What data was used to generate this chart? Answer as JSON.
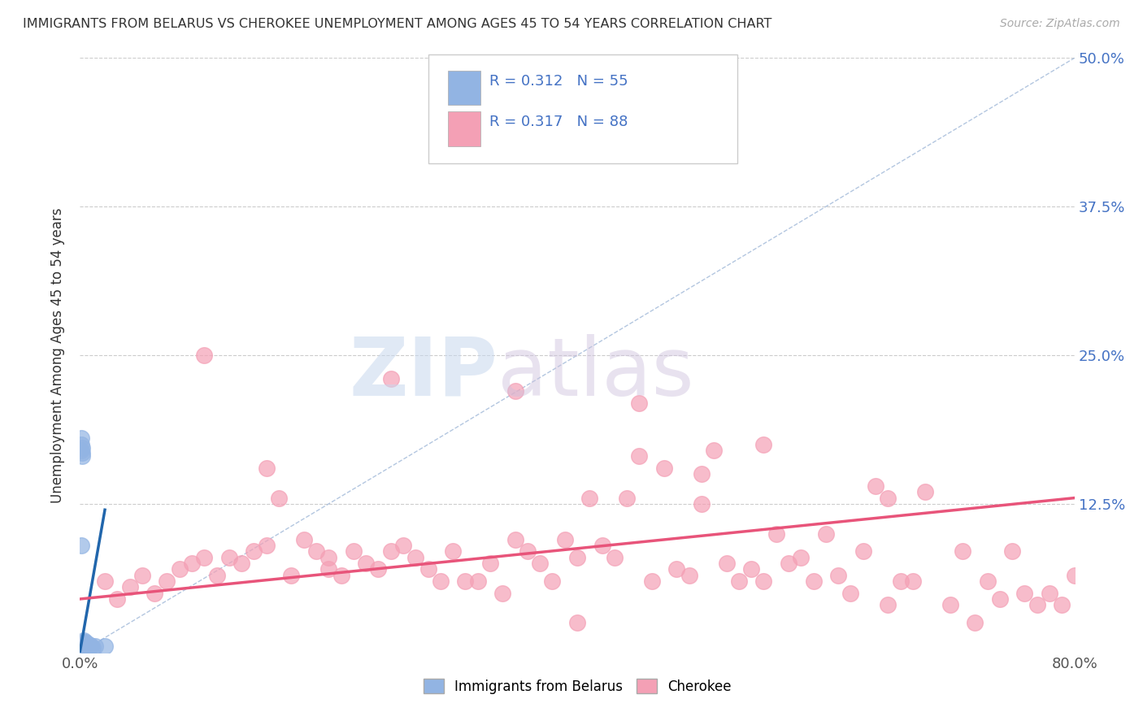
{
  "title": "IMMIGRANTS FROM BELARUS VS CHEROKEE UNEMPLOYMENT AMONG AGES 45 TO 54 YEARS CORRELATION CHART",
  "source": "Source: ZipAtlas.com",
  "ylabel": "Unemployment Among Ages 45 to 54 years",
  "x_min": 0.0,
  "x_max": 0.8,
  "y_min": 0.0,
  "y_max": 0.5,
  "x_ticks": [
    0.0,
    0.1,
    0.2,
    0.3,
    0.4,
    0.5,
    0.6,
    0.7,
    0.8
  ],
  "x_tick_labels": [
    "0.0%",
    "",
    "",
    "",
    "",
    "",
    "",
    "",
    "80.0%"
  ],
  "y_ticks": [
    0.0,
    0.125,
    0.25,
    0.375,
    0.5
  ],
  "y_tick_labels_right": [
    "",
    "12.5%",
    "25.0%",
    "37.5%",
    "50.0%"
  ],
  "blue_R": 0.312,
  "blue_N": 55,
  "pink_R": 0.317,
  "pink_N": 88,
  "blue_color": "#92b4e3",
  "pink_color": "#f4a0b5",
  "blue_line_color": "#2166ac",
  "pink_line_color": "#e8547a",
  "diag_line_color": "#a0b8d8",
  "legend_label_blue": "Immigrants from Belarus",
  "legend_label_pink": "Cherokee",
  "background_color": "#ffffff",
  "blue_scatter_x": [
    0.001,
    0.001,
    0.001,
    0.002,
    0.002,
    0.002,
    0.002,
    0.002,
    0.002,
    0.002,
    0.002,
    0.003,
    0.003,
    0.003,
    0.003,
    0.003,
    0.003,
    0.004,
    0.004,
    0.004,
    0.004,
    0.004,
    0.005,
    0.005,
    0.005,
    0.005,
    0.006,
    0.006,
    0.006,
    0.007,
    0.001,
    0.001,
    0.001,
    0.002,
    0.002,
    0.002,
    0.003,
    0.003,
    0.003,
    0.004,
    0.004,
    0.005,
    0.005,
    0.006,
    0.007,
    0.007,
    0.008,
    0.009,
    0.01,
    0.012,
    0.001,
    0.002,
    0.003,
    0.02,
    0.001
  ],
  "blue_scatter_y": [
    0.002,
    0.003,
    0.005,
    0.002,
    0.003,
    0.004,
    0.005,
    0.006,
    0.007,
    0.008,
    0.003,
    0.002,
    0.004,
    0.005,
    0.006,
    0.007,
    0.003,
    0.003,
    0.004,
    0.005,
    0.006,
    0.007,
    0.003,
    0.004,
    0.005,
    0.006,
    0.003,
    0.004,
    0.005,
    0.004,
    0.17,
    0.175,
    0.18,
    0.165,
    0.168,
    0.172,
    0.009,
    0.01,
    0.008,
    0.007,
    0.009,
    0.008,
    0.007,
    0.006,
    0.005,
    0.007,
    0.006,
    0.005,
    0.004,
    0.005,
    0.09,
    0.003,
    0.004,
    0.005,
    0.001
  ],
  "pink_scatter_x": [
    0.02,
    0.03,
    0.04,
    0.05,
    0.06,
    0.07,
    0.08,
    0.09,
    0.1,
    0.1,
    0.11,
    0.12,
    0.13,
    0.14,
    0.15,
    0.16,
    0.17,
    0.18,
    0.19,
    0.2,
    0.21,
    0.22,
    0.23,
    0.24,
    0.25,
    0.26,
    0.27,
    0.28,
    0.29,
    0.3,
    0.31,
    0.32,
    0.33,
    0.34,
    0.35,
    0.36,
    0.37,
    0.38,
    0.39,
    0.4,
    0.41,
    0.42,
    0.43,
    0.44,
    0.45,
    0.46,
    0.47,
    0.48,
    0.49,
    0.5,
    0.51,
    0.52,
    0.53,
    0.54,
    0.55,
    0.56,
    0.57,
    0.58,
    0.59,
    0.6,
    0.61,
    0.62,
    0.63,
    0.64,
    0.65,
    0.66,
    0.67,
    0.68,
    0.7,
    0.71,
    0.72,
    0.73,
    0.74,
    0.75,
    0.76,
    0.77,
    0.78,
    0.79,
    0.8,
    0.15,
    0.25,
    0.45,
    0.55,
    0.35,
    0.65,
    0.5,
    0.2,
    0.4
  ],
  "pink_scatter_y": [
    0.06,
    0.045,
    0.055,
    0.065,
    0.05,
    0.06,
    0.07,
    0.075,
    0.25,
    0.08,
    0.065,
    0.08,
    0.075,
    0.085,
    0.09,
    0.13,
    0.065,
    0.095,
    0.085,
    0.08,
    0.065,
    0.085,
    0.075,
    0.07,
    0.085,
    0.09,
    0.08,
    0.07,
    0.06,
    0.085,
    0.06,
    0.06,
    0.075,
    0.05,
    0.095,
    0.085,
    0.075,
    0.06,
    0.095,
    0.08,
    0.13,
    0.09,
    0.08,
    0.13,
    0.165,
    0.06,
    0.155,
    0.07,
    0.065,
    0.15,
    0.17,
    0.075,
    0.06,
    0.07,
    0.06,
    0.1,
    0.075,
    0.08,
    0.06,
    0.1,
    0.065,
    0.05,
    0.085,
    0.14,
    0.04,
    0.06,
    0.06,
    0.135,
    0.04,
    0.085,
    0.025,
    0.06,
    0.045,
    0.085,
    0.05,
    0.04,
    0.05,
    0.04,
    0.065,
    0.155,
    0.23,
    0.21,
    0.175,
    0.22,
    0.13,
    0.125,
    0.07,
    0.025
  ],
  "blue_trend_x0": 0.0,
  "blue_trend_y0": 0.001,
  "blue_trend_x1": 0.02,
  "blue_trend_y1": 0.12,
  "pink_trend_x0": 0.0,
  "pink_trend_y0": 0.045,
  "pink_trend_x1": 0.8,
  "pink_trend_y1": 0.13
}
